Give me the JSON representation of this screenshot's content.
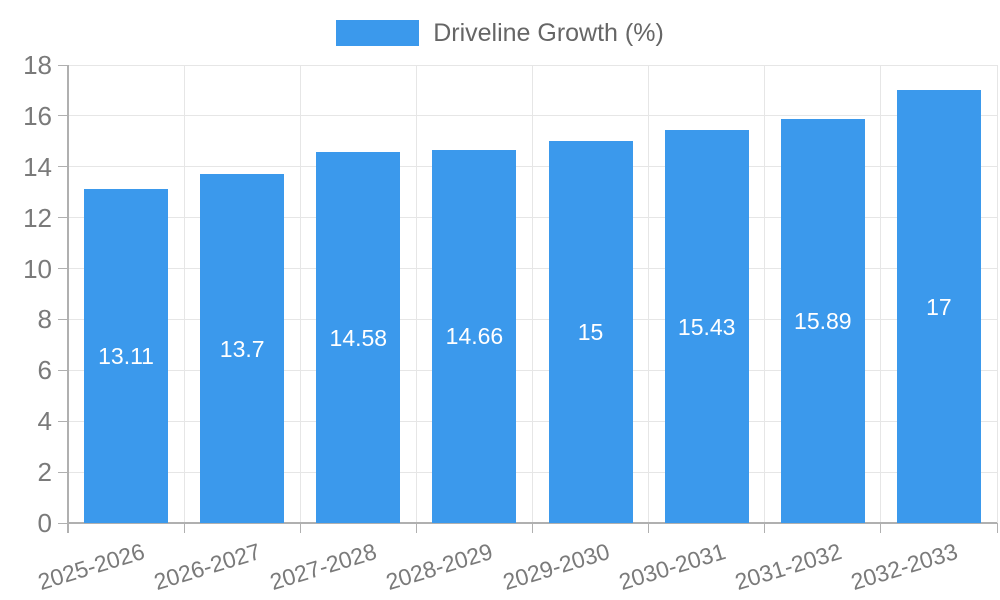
{
  "chart_data": {
    "type": "bar",
    "title": "",
    "legend_label": "Driveline Growth (%)",
    "legend_position": "top",
    "categories": [
      "2025-2026",
      "2026-2027",
      "2027-2028",
      "2028-2029",
      "2029-2030",
      "2030-2031",
      "2031-2032",
      "2032-2033"
    ],
    "values": [
      13.11,
      13.7,
      14.58,
      14.66,
      15,
      15.43,
      15.89,
      17
    ],
    "value_labels": [
      "13.11",
      "13.7",
      "14.58",
      "14.66",
      "15",
      "15.43",
      "15.89",
      "17"
    ],
    "xlabel": "",
    "ylabel": "",
    "ylim": [
      0,
      18
    ],
    "yticks": [
      0,
      2,
      4,
      6,
      8,
      10,
      12,
      14,
      16,
      18
    ],
    "grid": true,
    "x_label_rotation_deg": -17,
    "colors": {
      "bar": "#3b99ec",
      "value_label": "#ffffff",
      "axis": "#b0b0b0",
      "grid": "#e6e6e6",
      "tick_label": "#7a7a7a",
      "legend_text": "#666666"
    }
  }
}
